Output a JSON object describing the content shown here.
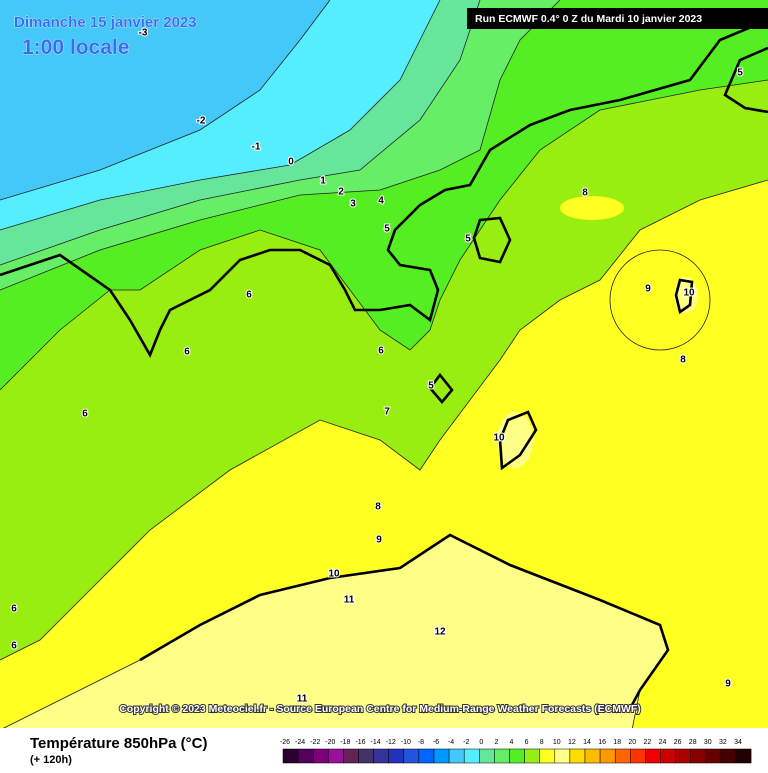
{
  "header": {
    "title": "Dimanche 15 janvier 2023",
    "time": "1:00 locale",
    "run": "Run ECMWF 0.4° 0 Z du Mardi 10 janvier 2023"
  },
  "map": {
    "contour_labels": [
      "-3",
      "-2",
      "-1",
      "0",
      "1",
      "2",
      "3",
      "4",
      "5",
      "5",
      "6",
      "6",
      "6",
      "6",
      "5",
      "7",
      "8",
      "8",
      "8",
      "9",
      "9",
      "10",
      "10",
      "10",
      "11",
      "12",
      "11",
      "9",
      "6",
      "6",
      "5"
    ]
  },
  "footer": {
    "copyright": "Copyright © 2023 Meteociel.fr - Source European Centre for Medium-Range Weather Forecasts (ECMWF)",
    "legend_title": "Température 850hPa (°C)",
    "forecast_hour": "(+ 120h)",
    "scale_labels": [
      "-26",
      "-24",
      "-22",
      "-20",
      "-18",
      "-16",
      "-14",
      "-12",
      "-10",
      "-8",
      "-6",
      "-4",
      "-2",
      "0",
      "2",
      "4",
      "6",
      "8",
      "10",
      "12",
      "14",
      "16",
      "18",
      "20",
      "22",
      "24",
      "26",
      "28",
      "30",
      "32",
      "34"
    ],
    "scale_colors": [
      "#2a0033",
      "#55005a",
      "#7a007a",
      "#9a109a",
      "#662255",
      "#443366",
      "#333399",
      "#2233bb",
      "#2255dd",
      "#0066ff",
      "#0099ff",
      "#44c8f8",
      "#55eeff",
      "#66e69a",
      "#66ee66",
      "#55ee22",
      "#99ee11",
      "#ffff22",
      "#ffff88",
      "#ffdd00",
      "#ffbb00",
      "#ff9900",
      "#ff6600",
      "#ff3300",
      "#ee0000",
      "#cc0000",
      "#aa0000",
      "#880000",
      "#660000",
      "#440000",
      "#220000"
    ]
  }
}
